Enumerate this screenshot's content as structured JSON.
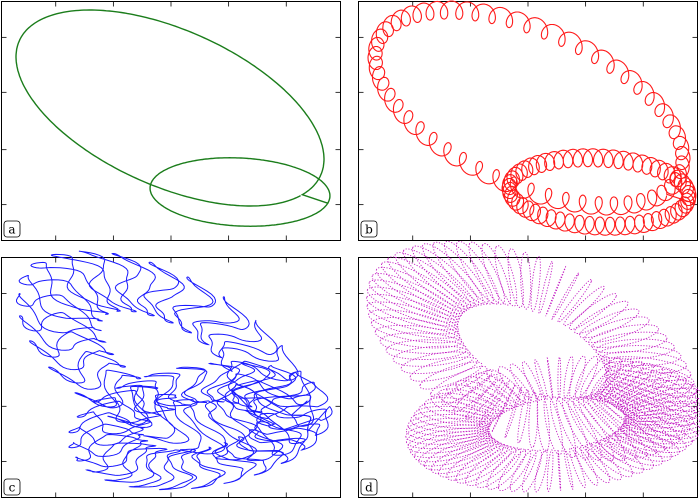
{
  "chart_data": [
    {
      "type": "line",
      "panel_label": "a",
      "color": "#1b7d1b",
      "style": "thin closed loop, two lobes",
      "torus": false,
      "wrap_turns": 0,
      "axes_ticks": "unlabeled",
      "grid": false
    },
    {
      "type": "line",
      "panel_label": "b",
      "color": "#ff1a1a",
      "style": "ribbon of coiled strands along a two-lobed loop",
      "torus": false,
      "wrap_turns": 110,
      "axes_ticks": "unlabeled",
      "grid": false
    },
    {
      "type": "line",
      "panel_label": "c",
      "color": "#1a1aff",
      "style": "wavy torus lines on a two-lobed surface",
      "torus": true,
      "wrap_turns": 48,
      "axes_ticks": "unlabeled",
      "grid": false
    },
    {
      "type": "scatter",
      "panel_label": "d",
      "color": "#c21ac2",
      "style": "dense dotted torus on a two-lobed surface",
      "torus": true,
      "wrap_turns": 150,
      "axes_ticks": "unlabeled",
      "grid": false
    }
  ]
}
